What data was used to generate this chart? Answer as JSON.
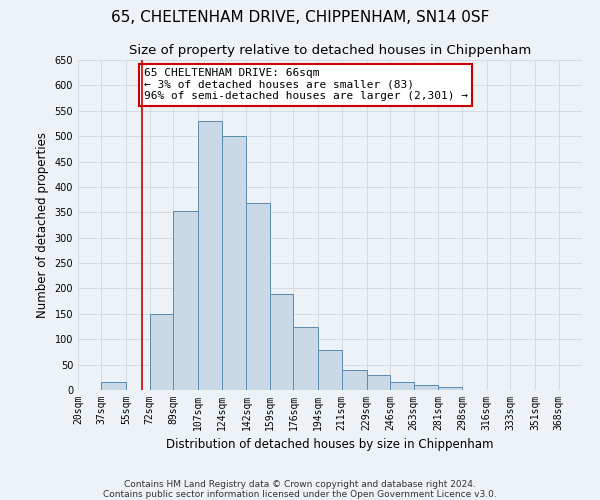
{
  "title": "65, CHELTENHAM DRIVE, CHIPPENHAM, SN14 0SF",
  "subtitle": "Size of property relative to detached houses in Chippenham",
  "xlabel": "Distribution of detached houses by size in Chippenham",
  "ylabel": "Number of detached properties",
  "bin_labels": [
    "20sqm",
    "37sqm",
    "55sqm",
    "72sqm",
    "89sqm",
    "107sqm",
    "124sqm",
    "142sqm",
    "159sqm",
    "176sqm",
    "194sqm",
    "211sqm",
    "229sqm",
    "246sqm",
    "263sqm",
    "281sqm",
    "298sqm",
    "316sqm",
    "333sqm",
    "351sqm",
    "368sqm"
  ],
  "bin_edges": [
    20,
    37,
    55,
    72,
    89,
    107,
    124,
    142,
    159,
    176,
    194,
    211,
    229,
    246,
    263,
    281,
    298,
    316,
    333,
    351,
    368
  ],
  "counts": [
    0,
    15,
    0,
    150,
    353,
    530,
    500,
    369,
    190,
    125,
    78,
    40,
    30,
    15,
    10,
    5,
    0,
    0,
    0,
    0,
    0
  ],
  "bar_facecolor": "#c9d9e8",
  "bar_edgecolor": "#5a8ab0",
  "grid_color": "#d0d8e0",
  "background_color": "#edf2f7",
  "vline_x": 66,
  "vline_color": "#cc0000",
  "annotation_text": "65 CHELTENHAM DRIVE: 66sqm\n← 3% of detached houses are smaller (83)\n96% of semi-detached houses are larger (2,301) →",
  "annotation_box_edgecolor": "#cc0000",
  "ylim": [
    0,
    650
  ],
  "yticks": [
    0,
    50,
    100,
    150,
    200,
    250,
    300,
    350,
    400,
    450,
    500,
    550,
    600,
    650
  ],
  "footer1": "Contains HM Land Registry data © Crown copyright and database right 2024.",
  "footer2": "Contains public sector information licensed under the Open Government Licence v3.0.",
  "title_fontsize": 11,
  "subtitle_fontsize": 9.5,
  "ylabel_fontsize": 8.5,
  "xlabel_fontsize": 8.5,
  "tick_fontsize": 7,
  "annotation_fontsize": 8,
  "footer_fontsize": 6.5
}
